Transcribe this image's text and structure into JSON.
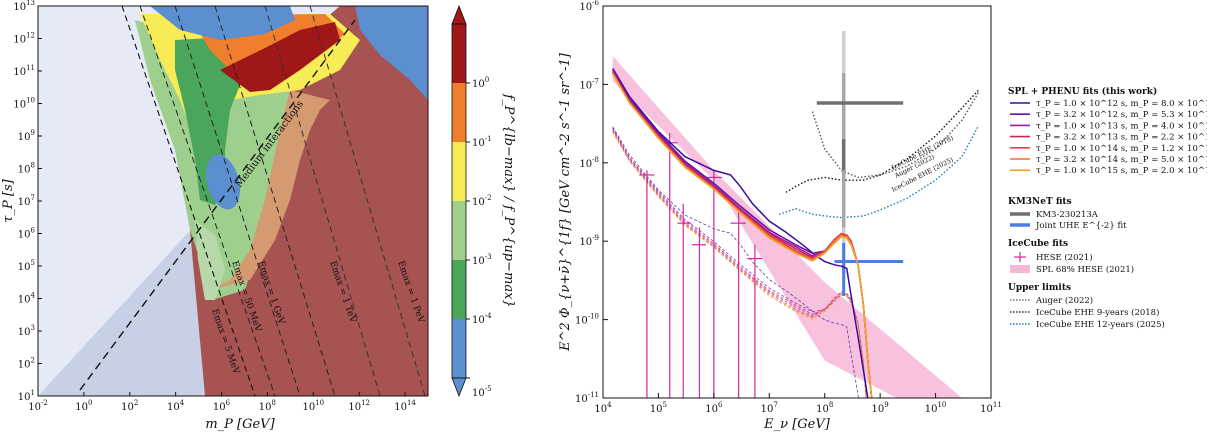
{
  "chart_data": [
    {
      "type": "heatmap",
      "panel": "left",
      "xlabel": "m_P [GeV]",
      "ylabel": "τ_P [s]",
      "xscale": "log",
      "yscale": "log",
      "xlim": [
        0.01,
        1000000000000000.0
      ],
      "ylim": [
        10,
        10000000000000.0
      ],
      "x_ticks": [
        "10^-2",
        "10^0",
        "10^2",
        "10^4",
        "10^6",
        "10^8",
        "10^10",
        "10^12",
        "10^14"
      ],
      "y_ticks": [
        "10^1",
        "10^2",
        "10^3",
        "10^4",
        "10^5",
        "10^6",
        "10^7",
        "10^8",
        "10^9",
        "10^10",
        "10^11",
        "10^12",
        "10^13"
      ],
      "colorbar": {
        "label": "f_P^{lb−max} / f_P^{up−max}",
        "ticks": [
          "10^-5",
          "10^-4",
          "10^-3",
          "10^-2",
          "10^-1",
          "10^0"
        ],
        "levels": [
          {
            "from": 1e-05,
            "to": 0.0001,
            "color": "#5b8fd0"
          },
          {
            "from": 0.0001,
            "to": 0.001,
            "color": "#4aa65a"
          },
          {
            "from": 0.001,
            "to": 0.01,
            "color": "#9ecf8c"
          },
          {
            "from": 0.01,
            "to": 0.1,
            "color": "#f7ec55"
          },
          {
            "from": 0.1,
            "to": 1,
            "color": "#ef7f2c"
          },
          {
            "from": 1,
            "to": 10,
            "color": "#a01717"
          }
        ]
      },
      "annotations": [
        "Medium interactions",
        "Emax = 5 MeV",
        "Emax = 50 MeV",
        "Emax = 1 GeV",
        "Emax = 1 TeV",
        "Emax = 1 PeV"
      ],
      "excluded_region_color": "#a75352"
    },
    {
      "type": "line",
      "panel": "right",
      "xlabel": "E_ν [GeV]",
      "ylabel": "E^2 Φ_{ν+ν̄}^{1f} [GeV cm^-2 s^-1 sr^-1]",
      "xscale": "log",
      "yscale": "log",
      "xlim": [
        10000.0,
        100000000000.0
      ],
      "ylim": [
        1e-11,
        1e-06
      ],
      "x_ticks": [
        "10^4",
        "10^5",
        "10^6",
        "10^7",
        "10^8",
        "10^9",
        "10^10",
        "10^11"
      ],
      "y_ticks": [
        "10^-11",
        "10^-10",
        "10^-9",
        "10^-8",
        "10^-7",
        "10^-6"
      ],
      "series": [
        {
          "name": "τ_P = 1.0 × 10^12 s, m_P = 8.0 × 10^11 GeV",
          "color": "#3a0ca3",
          "x": [
            15000.0,
            30000.0,
            100000.0,
            300000.0,
            1000000.0,
            2000000.0,
            3000000.0,
            5000000.0,
            10000000.0,
            20000000.0,
            40000000.0,
            70000000.0,
            100000000.0,
            150000000.0,
            200000000.0,
            250000000.0,
            300000000.0,
            400000000.0,
            600000000.0
          ],
          "y": [
            1.6e-07,
            7e-08,
            2.5e-08,
            1.2e-08,
            8e-09,
            7e-09,
            5e-09,
            3e-09,
            1.8e-09,
            1.3e-09,
            9e-10,
            6.5e-10,
            5.5e-10,
            5e-10,
            4.8e-10,
            4.5e-10,
            2e-10,
            6e-11,
            1e-11
          ]
        },
        {
          "name": "τ_P = 3.2 × 10^12 s, m_P = 5.3 × 10^11 GeV",
          "color": "#6a0dad",
          "x": [
            15000.0,
            30000.0,
            100000.0,
            300000.0,
            1000000.0,
            3000000.0,
            10000000.0,
            30000000.0,
            60000000.0,
            100000000.0,
            150000000.0,
            200000000.0,
            250000000.0,
            300000000.0,
            400000000.0,
            500000000.0,
            600000000.0,
            700000000.0
          ],
          "y": [
            1.55e-07,
            6.5e-08,
            2.4e-08,
            1.05e-08,
            5.5e-09,
            2.8e-09,
            1.4e-09,
            9e-10,
            7e-10,
            7.5e-10,
            9.5e-10,
            1.15e-09,
            1.1e-09,
            9e-10,
            5e-10,
            1.5e-10,
            3e-11,
            1e-11
          ]
        },
        {
          "name": "τ_P = 1.0 × 10^13 s, m_P = 4.0 × 10^11 GeV",
          "color": "#9b1d9b",
          "x": [
            15000.0,
            30000.0,
            100000.0,
            300000.0,
            1000000.0,
            3000000.0,
            10000000.0,
            30000000.0,
            60000000.0,
            100000000.0,
            150000000.0,
            200000000.0,
            250000000.0,
            300000000.0,
            400000000.0,
            500000000.0,
            600000000.0,
            700000000.0
          ],
          "y": [
            1.5e-07,
            6.3e-08,
            2.3e-08,
            1e-08,
            5.2e-09,
            2.6e-09,
            1.3e-09,
            8.5e-10,
            6.5e-10,
            7.5e-10,
            1e-09,
            1.2e-09,
            1.15e-09,
            9.5e-10,
            5e-10,
            1.5e-10,
            3e-11,
            1e-11
          ]
        },
        {
          "name": "τ_P = 3.2 × 10^13 s, m_P = 2.2 × 10^11 GeV",
          "color": "#c2255c",
          "x": [
            15000.0,
            30000.0,
            100000.0,
            300000.0,
            1000000.0,
            3000000.0,
            10000000.0,
            30000000.0,
            60000000.0,
            100000000.0,
            150000000.0,
            200000000.0,
            250000000.0,
            300000000.0,
            400000000.0,
            500000000.0,
            600000000.0,
            700000000.0
          ],
          "y": [
            1.45e-07,
            6.1e-08,
            2.2e-08,
            9.5e-09,
            5e-09,
            2.5e-09,
            1.25e-09,
            8e-10,
            6.2e-10,
            7.5e-10,
            1.05e-09,
            1.25e-09,
            1.2e-09,
            1e-09,
            5e-10,
            1.5e-10,
            3e-11,
            1e-11
          ]
        },
        {
          "name": "τ_P = 1.0 × 10^14 s, m_P = 1.2 × 10^11 GeV",
          "color": "#e03e52",
          "x": [
            15000.0,
            30000.0,
            100000.0,
            300000.0,
            1000000.0,
            3000000.0,
            10000000.0,
            30000000.0,
            60000000.0,
            100000000.0,
            150000000.0,
            200000000.0,
            250000000.0,
            300000000.0,
            400000000.0,
            500000000.0,
            600000000.0,
            700000000.0
          ],
          "y": [
            1.4e-07,
            6e-08,
            2.15e-08,
            9.2e-09,
            4.8e-09,
            2.4e-09,
            1.2e-09,
            7.5e-10,
            6e-10,
            7.5e-10,
            1.05e-09,
            1.25e-09,
            1.2e-09,
            1e-09,
            5e-10,
            1.5e-10,
            3e-11,
            1e-11
          ]
        },
        {
          "name": "τ_P = 3.2 × 10^14 s, m_P = 5.0 × 10^10 GeV",
          "color": "#f26b38",
          "x": [
            15000.0,
            30000.0,
            100000.0,
            300000.0,
            1000000.0,
            3000000.0,
            10000000.0,
            30000000.0,
            60000000.0,
            100000000.0,
            150000000.0,
            200000000.0,
            250000000.0,
            300000000.0,
            400000000.0,
            500000000.0,
            600000000.0,
            700000000.0
          ],
          "y": [
            1.4e-07,
            5.9e-08,
            2.1e-08,
            9e-09,
            4.7e-09,
            2.35e-09,
            1.15e-09,
            7.2e-10,
            5.8e-10,
            7.2e-10,
            1e-09,
            1.2e-09,
            1.15e-09,
            9.5e-10,
            5e-10,
            1.5e-10,
            3e-11,
            1e-11
          ]
        },
        {
          "name": "τ_P = 1.0 × 10^15 s, m_P = 2.0 × 10^10 GeV",
          "color": "#f5a623",
          "x": [
            15000.0,
            30000.0,
            100000.0,
            300000.0,
            1000000.0,
            3000000.0,
            10000000.0,
            30000000.0,
            60000000.0,
            100000000.0,
            150000000.0,
            200000000.0,
            250000000.0,
            300000000.0,
            400000000.0,
            500000000.0,
            600000000.0,
            700000000.0
          ],
          "y": [
            1.35e-07,
            5.8e-08,
            2.05e-08,
            8.8e-09,
            4.6e-09,
            2.3e-09,
            1.1e-09,
            7e-10,
            5.6e-10,
            7e-10,
            9.5e-10,
            1.15e-09,
            1.1e-09,
            9e-10,
            5e-10,
            1.5e-10,
            3e-11,
            1e-11
          ]
        }
      ],
      "km3net": {
        "name": "KM3-230213A",
        "color": "#707070",
        "x_range": [
          72000000.0,
          2600000000.0
        ],
        "y_center": 5.8e-08,
        "y_errors": [
          [
            3.8e-10,
            4.8e-07
          ],
          [
            1.5e-09,
            1.4e-07
          ],
          [
            8e-09,
            2e-08
          ]
        ],
        "x_center": 220000000.0
      },
      "joint_uhe": {
        "name": "Joint UHE E^{-2} fit",
        "color": "#4a7fdf",
        "x_range": [
          150000000.0,
          2600000000.0
        ],
        "y": 5.5e-10,
        "x_center": 220000000.0,
        "y_error": [
          2e-10,
          9.5e-10
        ]
      },
      "hese": {
        "name": "HESE (2021)",
        "color": "#d6249f",
        "points": [
          {
            "x_range": [
              45000.0,
              85000.0
            ],
            "x": 62000.0,
            "y": 7e-09,
            "y_err": [
              1e-11,
              8e-09
            ]
          },
          {
            "x_range": [
              115000.0,
              220000.0
            ],
            "x": 160000.0,
            "y": 1.8e-08,
            "y_err": [
              1e-11,
              2.4e-08
            ]
          },
          {
            "x_range": [
              220000.0,
              390000.0
            ],
            "x": 280000.0,
            "y": 1.7e-09,
            "y_err": [
              1e-11,
              3e-09
            ]
          },
          {
            "x_range": [
              400000.0,
              720000.0
            ],
            "x": 550000.0,
            "y": 9e-10,
            "y_err": [
              1e-11,
              1.5e-09
            ]
          },
          {
            "x_range": [
              750000.0,
              1400000.0
            ],
            "x": 1000000.0,
            "y": 6.5e-09,
            "y_err": [
              1e-11,
              8e-09
            ]
          },
          {
            "x_range": [
              2000000.0,
              3800000.0
            ],
            "x": 2800000.0,
            "y": 1.7e-09,
            "y_err": [
              1e-11,
              2.5e-09
            ]
          },
          {
            "x_range": [
              4000000.0,
              7500000.0
            ],
            "x": 5500000.0,
            "y": 6e-10,
            "y_err": [
              1e-11,
              9e-10
            ]
          }
        ]
      },
      "spl_band": {
        "name": "SPL 68% HESE (2021)",
        "color": "#f7b7d8",
        "upper": [
          [
            15000.0,
            2.3e-07
          ],
          [
            1000000.0,
            8e-09
          ],
          [
            100000000.0,
            3e-10
          ],
          [
            30000000000.0,
            1e-11
          ]
        ],
        "lower": [
          [
            15000.0,
            1.1e-07
          ],
          [
            1000000.0,
            6e-09
          ],
          [
            100000000.0,
            3e-11
          ],
          [
            2000000000.0,
            1e-11
          ]
        ]
      },
      "upper_limits": [
        {
          "name": "Auger (2022)",
          "color": "#555555",
          "style": "dotted",
          "x": [
            60000000.0,
            100000000.0,
            200000000.0,
            400000000.0,
            1000000000.0,
            3000000000.0,
            10000000000.0,
            30000000000.0,
            60000000000.0
          ],
          "y": [
            4.5e-08,
            1.5e-08,
            8e-09,
            6.5e-09,
            7e-09,
            9e-09,
            1.5e-08,
            3.5e-08,
            8e-08
          ]
        },
        {
          "name": "IceCube EHE 9-years (2018)",
          "color": "#111111",
          "style": "dotted",
          "x": [
            20000000.0,
            30000000.0,
            50000000.0,
            100000000.0,
            200000000.0,
            500000000.0,
            1000000000.0,
            3000000000.0,
            10000000000.0,
            30000000000.0,
            60000000000.0
          ],
          "y": [
            4.2e-09,
            5e-09,
            6e-09,
            6.5e-09,
            6e-09,
            6e-09,
            7e-09,
            1.1e-08,
            2.2e-08,
            5e-08,
            8.5e-08
          ]
        },
        {
          "name": "IceCube EHE 12-years (2025)",
          "color": "#1f77b4",
          "style": "dotted",
          "x": [
            15000000.0,
            30000000.0,
            60000000.0,
            100000000.0,
            200000000.0,
            500000000.0,
            1000000000.0,
            3000000000.0,
            10000000000.0,
            30000000000.0,
            60000000000.0
          ],
          "y": [
            2.2e-09,
            2.6e-09,
            2.2e-09,
            2.1e-09,
            2e-09,
            2.1e-09,
            2.5e-09,
            3.5e-09,
            6e-09,
            1.2e-08,
            3e-08
          ]
        }
      ],
      "curve_labels": [
        "IceCube EHE (2018)",
        "Auger (2022)",
        "IceCube EHE (2025)"
      ],
      "legend": {
        "spl_title": "SPL + PHENU fits (this work)",
        "km3_title": "KM3NeT fits",
        "icecube_title": "IceCube fits",
        "limits_title": "Upper limits"
      }
    }
  ]
}
